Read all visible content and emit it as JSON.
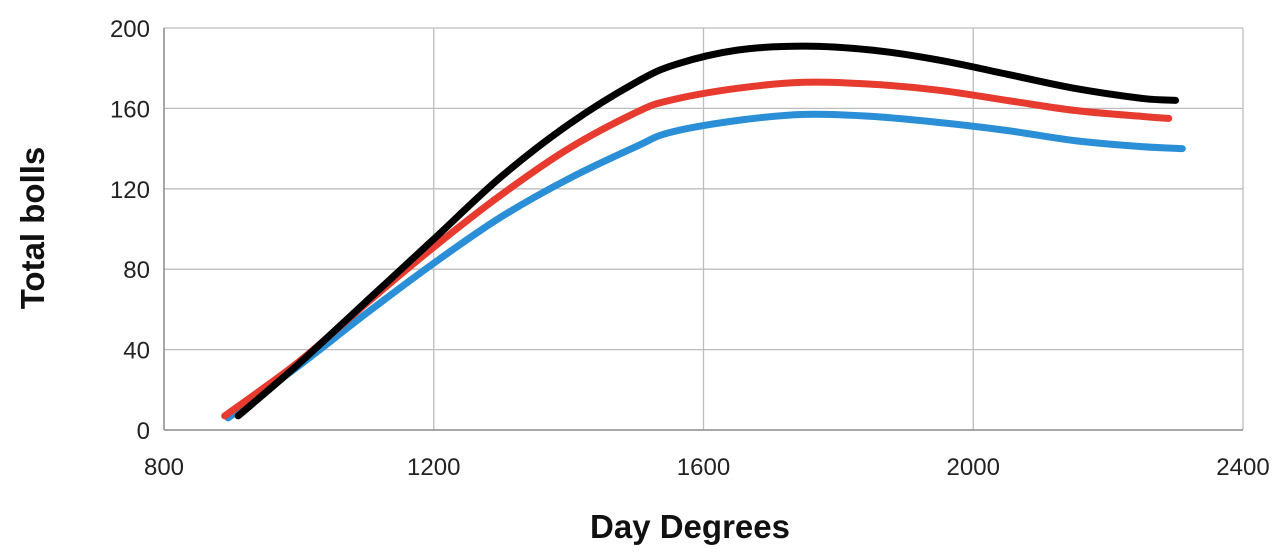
{
  "chart_data": {
    "type": "line",
    "title": "",
    "xlabel": "Day Degrees",
    "ylabel": "Total bolls",
    "xlim": [
      800,
      2400
    ],
    "ylim": [
      0,
      200
    ],
    "x_ticks": [
      800,
      1200,
      1600,
      2000,
      2400
    ],
    "y_ticks": [
      0,
      40,
      80,
      120,
      160,
      200
    ],
    "x_tick_labels": [
      "800",
      "1200",
      "1600",
      "2000",
      "2400"
    ],
    "y_tick_labels": [
      "0",
      "40",
      "80",
      "120",
      "160",
      "200"
    ],
    "grid": true,
    "legend": "none",
    "series": [
      {
        "color": "#000000",
        "x": [
          910,
          1000,
          1100,
          1200,
          1300,
          1400,
          1500,
          1560,
          1650,
          1750,
          1850,
          1950,
          2050,
          2150,
          2250,
          2300
        ],
        "y": [
          7,
          33,
          64,
          95,
          126,
          152,
          173,
          182,
          189,
          191,
          189,
          184,
          177,
          170,
          165,
          164
        ]
      },
      {
        "color": "#e63b2e",
        "x": [
          890,
          1000,
          1100,
          1200,
          1300,
          1400,
          1500,
          1550,
          1650,
          1750,
          1850,
          1950,
          2050,
          2150,
          2250,
          2290
        ],
        "y": [
          7,
          34,
          63,
          91,
          117,
          140,
          158,
          164,
          170,
          173,
          172,
          169,
          164,
          159,
          156,
          155
        ]
      },
      {
        "color": "#2a8fd6",
        "x": [
          895,
          1000,
          1100,
          1200,
          1300,
          1400,
          1500,
          1550,
          1650,
          1750,
          1850,
          1950,
          2050,
          2150,
          2250,
          2310
        ],
        "y": [
          6,
          32,
          58,
          83,
          106,
          125,
          141,
          148,
          154,
          157,
          156,
          153,
          149,
          144,
          141,
          140
        ]
      }
    ]
  }
}
